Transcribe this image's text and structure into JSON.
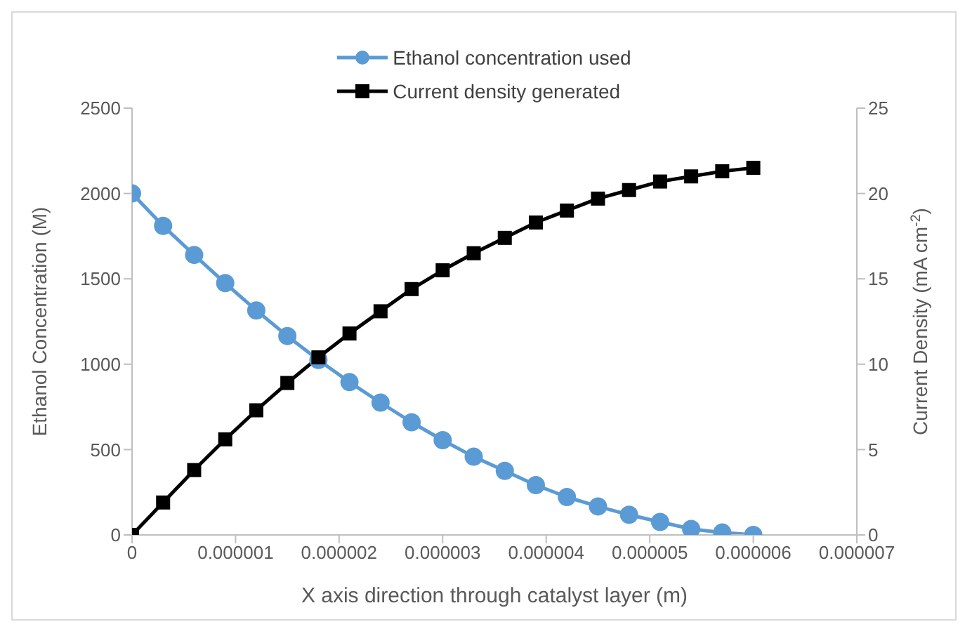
{
  "chart_data": {
    "type": "line",
    "xlabel": "X axis direction through catalyst layer (m)",
    "ylabel": "Ethanol Concentration (M)",
    "y2label": "Current Density (mA cm$^{-2}$)",
    "x": [
      0,
      3e-07,
      6e-07,
      9e-07,
      1.2e-06,
      1.5e-06,
      1.8e-06,
      2.1e-06,
      2.4e-06,
      2.7e-06,
      3e-06,
      3.3e-06,
      3.6e-06,
      3.9e-06,
      4.2e-06,
      4.5e-06,
      4.8e-06,
      5.1e-06,
      5.4e-06,
      5.7e-06,
      6e-06
    ],
    "series": [
      {
        "name": "Ethanol concentration used",
        "color": "#5b9bd5",
        "marker": "circle",
        "values": [
          2000,
          1810,
          1640,
          1475,
          1315,
          1165,
          1025,
          895,
          775,
          660,
          555,
          458,
          375,
          292,
          222,
          167,
          118,
          76,
          35,
          14,
          0
        ]
      },
      {
        "name": "Current density generated",
        "color": "#000000",
        "marker": "square",
        "axis": "y2",
        "values": [
          0,
          1.9,
          3.8,
          5.6,
          7.3,
          8.9,
          10.4,
          11.8,
          13.1,
          14.4,
          15.5,
          16.5,
          17.4,
          18.3,
          19.0,
          19.7,
          20.2,
          20.7,
          21.0,
          21.3,
          21.5
        ]
      }
    ],
    "xlim": [
      0,
      7e-06
    ],
    "xticks": [
      0,
      {
        "value": 1e-06,
        "label": "0.000001"
      },
      {
        "value": 2e-06,
        "label": "0.000002"
      },
      {
        "value": 3e-06,
        "label": "0.000003"
      },
      {
        "value": 4e-06,
        "label": "0.000004"
      },
      {
        "value": 5e-06,
        "label": "0.000005"
      },
      {
        "value": 6e-06,
        "label": "0.000006"
      },
      {
        "value": 7e-06,
        "label": "0.000007"
      }
    ],
    "ylim": [
      0,
      2500
    ],
    "yticks": [
      0,
      500,
      1000,
      1500,
      2000,
      2500
    ],
    "y2lim": [
      0,
      25
    ],
    "y2ticks": [
      0,
      5,
      10,
      15,
      20,
      25
    ],
    "grid": false,
    "legend": "top",
    "line_style": "solid"
  }
}
